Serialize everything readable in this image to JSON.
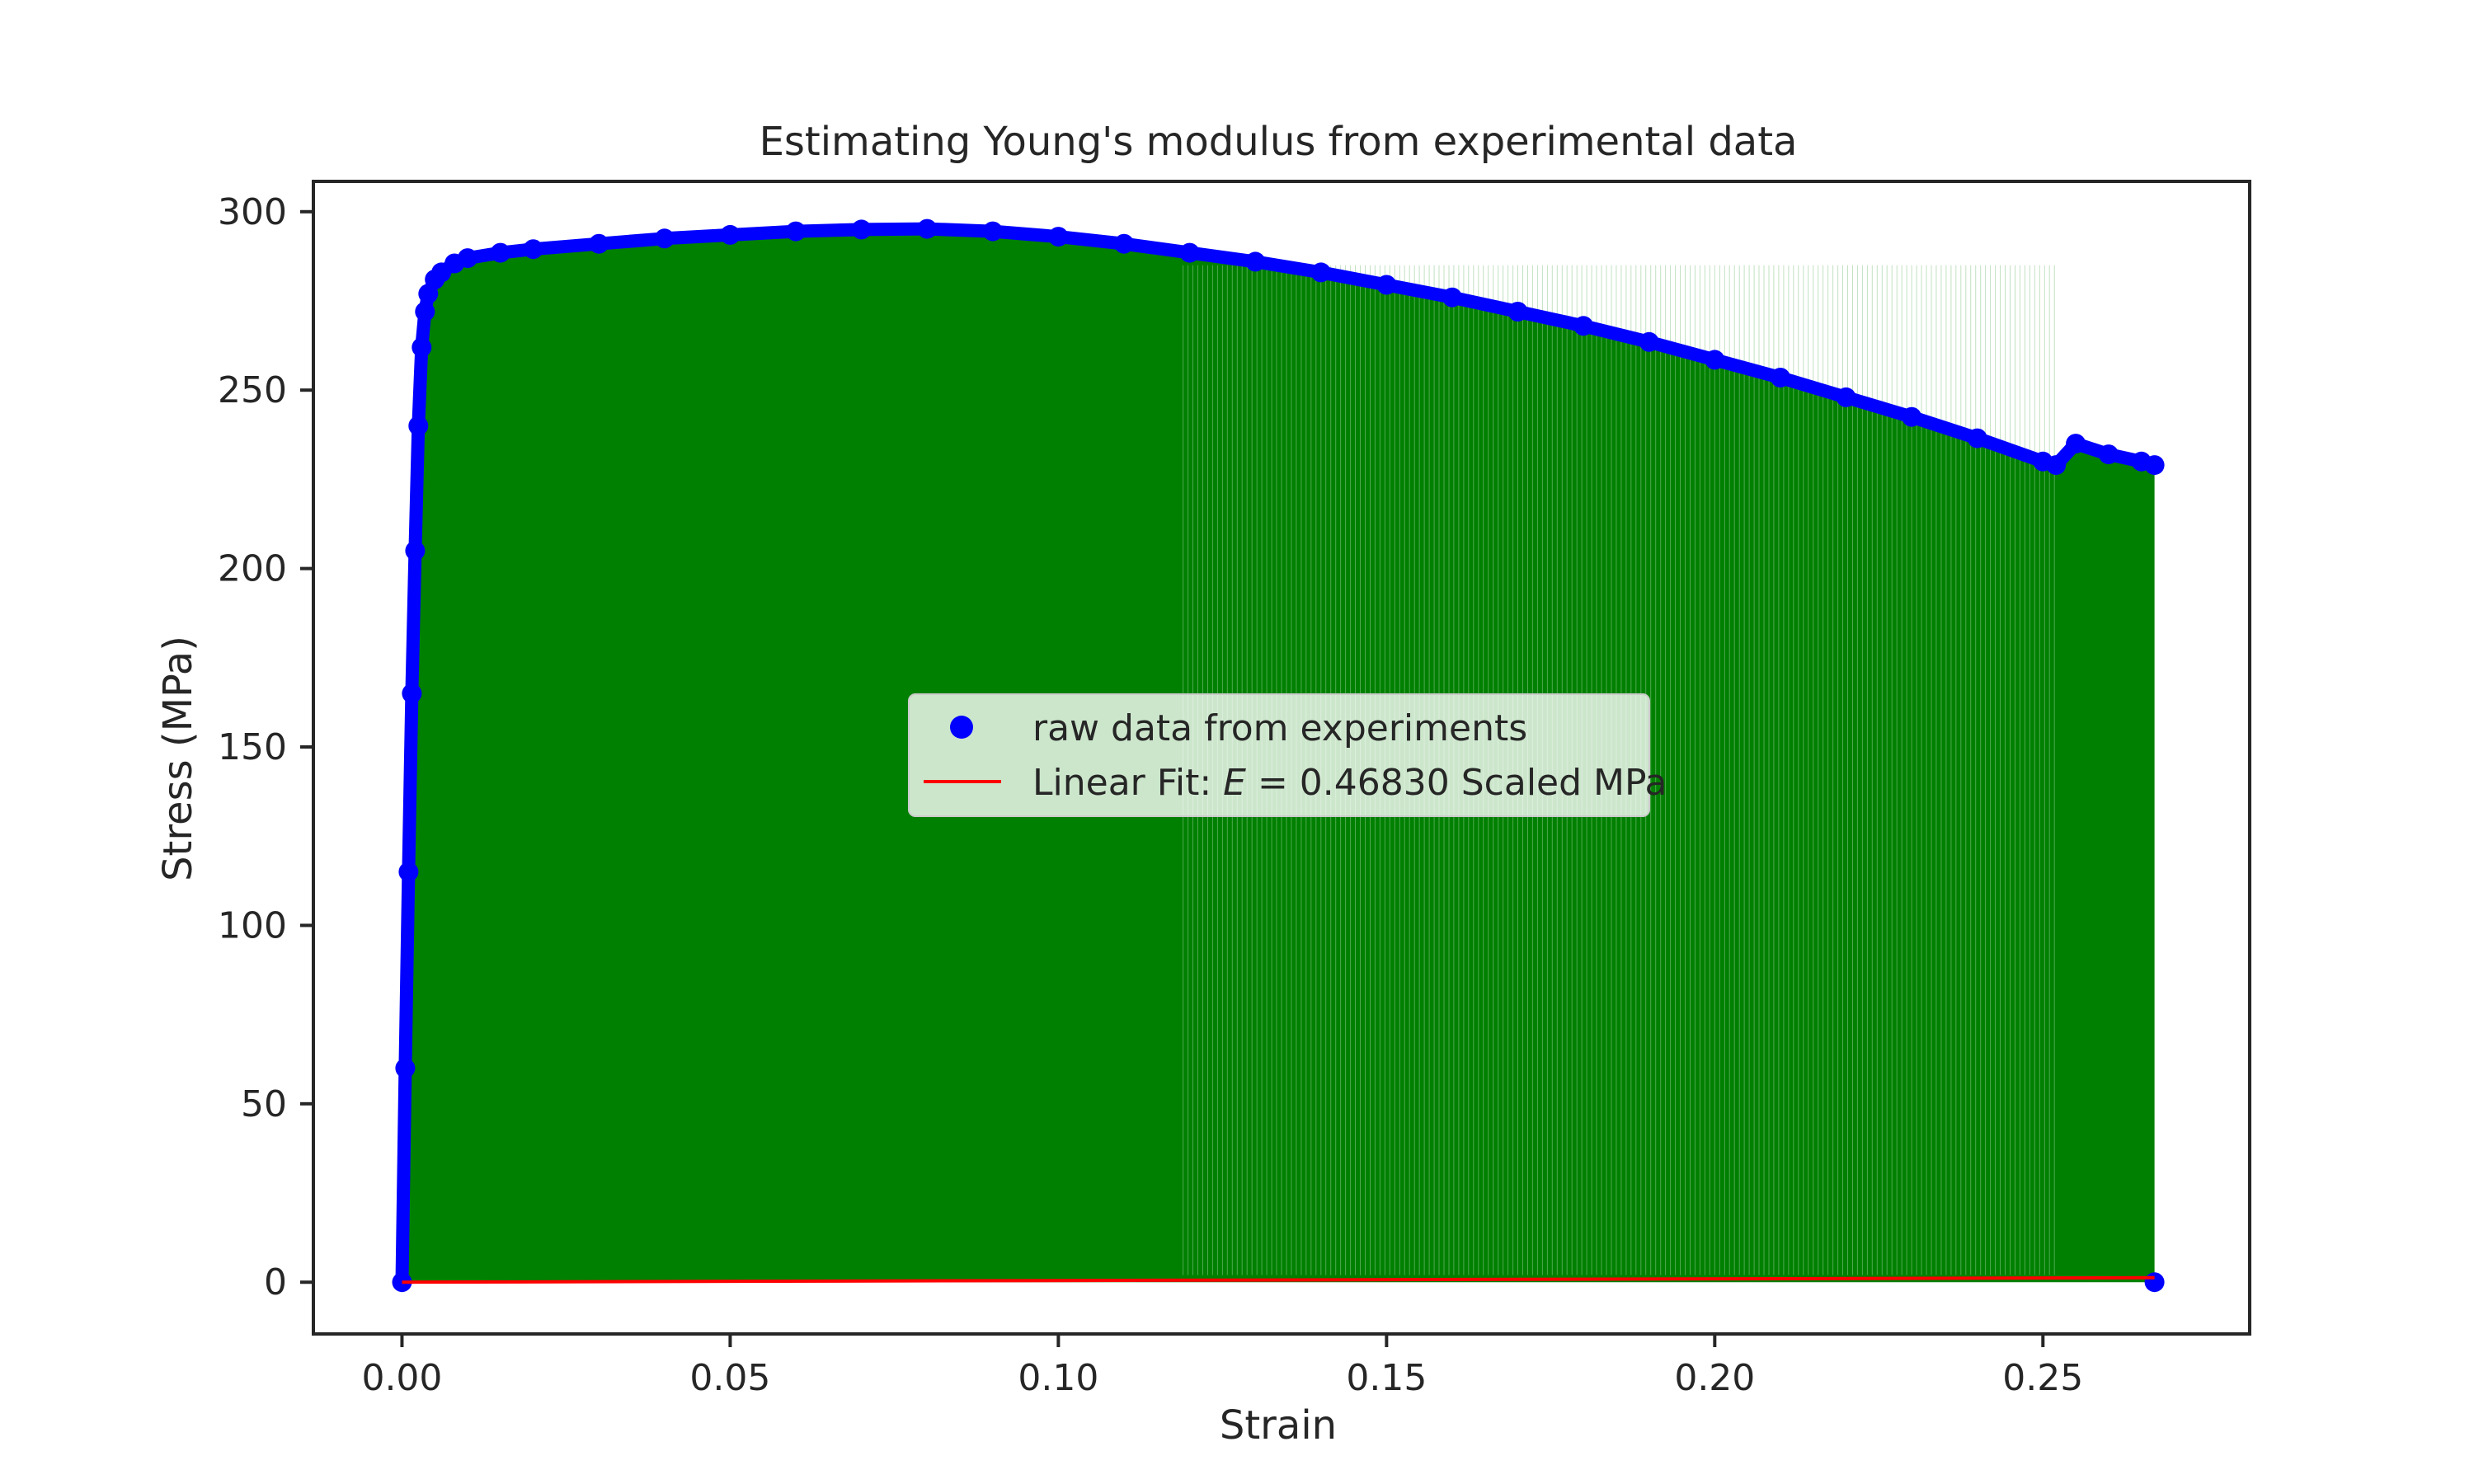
{
  "chart_data": {
    "type": "scatter",
    "title": "Estimating Young's modulus from experimental data",
    "xlabel": "Strain",
    "ylabel": "Stress (MPa)",
    "xlim": [
      -0.0135,
      0.2815
    ],
    "ylim": [
      -14.5,
      308.5
    ],
    "xticks": [
      0.0,
      0.05,
      0.1,
      0.15,
      0.2,
      0.25
    ],
    "xtick_labels": [
      "0.00",
      "0.05",
      "0.10",
      "0.15",
      "0.20",
      "0.25"
    ],
    "yticks": [
      0,
      50,
      100,
      150,
      200,
      250,
      300
    ],
    "ytick_labels": [
      "0",
      "50",
      "100",
      "150",
      "200",
      "250",
      "300"
    ],
    "grid": false,
    "legend_position": "center",
    "series": [
      {
        "name": "raw data from experiments",
        "style": "points",
        "color": "#0000ff",
        "x": [
          0.0,
          0.0005,
          0.001,
          0.0015,
          0.002,
          0.0025,
          0.003,
          0.0035,
          0.004,
          0.005,
          0.006,
          0.008,
          0.01,
          0.015,
          0.02,
          0.03,
          0.04,
          0.05,
          0.06,
          0.07,
          0.08,
          0.09,
          0.1,
          0.11,
          0.12,
          0.13,
          0.14,
          0.15,
          0.16,
          0.17,
          0.18,
          0.19,
          0.2,
          0.21,
          0.22,
          0.23,
          0.24,
          0.25,
          0.252,
          0.255,
          0.26,
          0.265,
          0.267,
          0.267
        ],
        "y": [
          0,
          60,
          115,
          165,
          205,
          240,
          262,
          272,
          277,
          281,
          283,
          285.5,
          287,
          288.5,
          289.5,
          291,
          292.5,
          293.5,
          294.5,
          295,
          295.2,
          294.5,
          293,
          291,
          288.5,
          286,
          283,
          279.5,
          276,
          272,
          268,
          263.5,
          258.5,
          253.5,
          248,
          242.5,
          236.5,
          230,
          229,
          235,
          232,
          230,
          229,
          0
        ]
      },
      {
        "name": "Linear Fit: E = 0.46830 Scaled MPa",
        "style": "line",
        "color": "#ff0000",
        "x": [
          0.0,
          0.267
        ],
        "y": [
          0.0,
          1.25
        ]
      }
    ],
    "fill": {
      "color": "#008000",
      "description_series": "raw data from experiments"
    },
    "legend": {
      "entries": [
        {
          "label_prefix": "Linear Fit: ",
          "label_math": "E",
          "label_suffix": " = 0.46830 Scaled MPa"
        }
      ]
    }
  }
}
